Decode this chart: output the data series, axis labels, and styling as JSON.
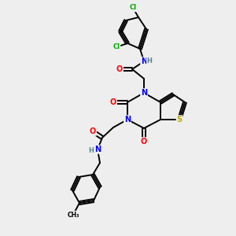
{
  "bg_color": "#eeeeee",
  "atom_colors": {
    "C": "#000000",
    "N": "#0000ee",
    "O": "#ff0000",
    "S": "#bbaa00",
    "Cl": "#00aa00",
    "H": "#558888"
  },
  "bond_color": "#000000",
  "bond_width": 1.4
}
